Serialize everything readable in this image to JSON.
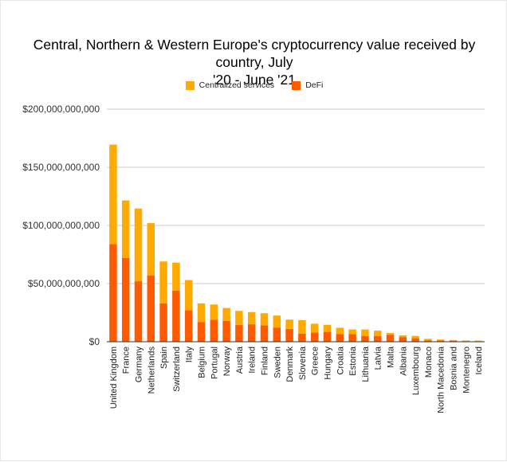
{
  "chart_data": {
    "type": "bar",
    "stacked": true,
    "title": "Central, Northern & Western Europe's cryptocurrency value received by country, July '20 - June '21",
    "title_lines": [
      "Central, Northern & Western Europe's cryptocurrency value received by country, July",
      "'20 - June '21"
    ],
    "xlabel": "",
    "ylabel": "",
    "ylim": [
      0,
      200000000000
    ],
    "yticks": [
      0,
      50000000000,
      100000000000,
      150000000000,
      200000000000
    ],
    "ytick_labels": [
      "$0",
      "$50,000,000,000",
      "$100,000,000,000",
      "$150,000,000,000",
      "$200,000,000,000"
    ],
    "grid": true,
    "legend_position": "top-center",
    "categories": [
      "United Kingdom",
      "France",
      "Germany",
      "Netherlands",
      "Spain",
      "Switzerland",
      "Italy",
      "Belgium",
      "Portugal",
      "Norway",
      "Austria",
      "Ireland",
      "Finland",
      "Sweden",
      "Denmark",
      "Slovenia",
      "Greece",
      "Hungary",
      "Croatia",
      "Estonia",
      "Lithuania",
      "Latvia",
      "Malta",
      "Albania",
      "Luxembourg",
      "Monaco",
      "North Macedonia",
      "Bosnia and",
      "Montenegro",
      "Iceland"
    ],
    "series": [
      {
        "name": "DeFi",
        "color": "#ff5a00",
        "values": [
          84000000000,
          72000000000,
          52000000000,
          57000000000,
          33000000000,
          44000000000,
          27000000000,
          17000000000,
          19000000000,
          18000000000,
          14500000000,
          15000000000,
          14000000000,
          12000000000,
          11000000000,
          7000000000,
          8000000000,
          8500000000,
          6500000000,
          6500000000,
          5000000000,
          5000000000,
          6000000000,
          4000000000,
          3000000000,
          1200000000,
          1000000000,
          700000000,
          500000000,
          400000000
        ]
      },
      {
        "name": "Centralized services",
        "color": "#ffaa00",
        "values": [
          85500000000,
          49500000000,
          62500000000,
          45000000000,
          36000000000,
          24000000000,
          26000000000,
          16000000000,
          13000000000,
          11000000000,
          12000000000,
          10500000000,
          10500000000,
          10500000000,
          8000000000,
          11500000000,
          7500000000,
          6000000000,
          5500000000,
          4000000000,
          5500000000,
          4500000000,
          1500000000,
          1500000000,
          2000000000,
          1300000000,
          900000000,
          800000000,
          600000000,
          600000000
        ]
      }
    ]
  },
  "legend": {
    "items": [
      {
        "label": "Centralized services",
        "color": "#ffaa00"
      },
      {
        "label": "DeFi",
        "color": "#ff5a00"
      }
    ]
  }
}
